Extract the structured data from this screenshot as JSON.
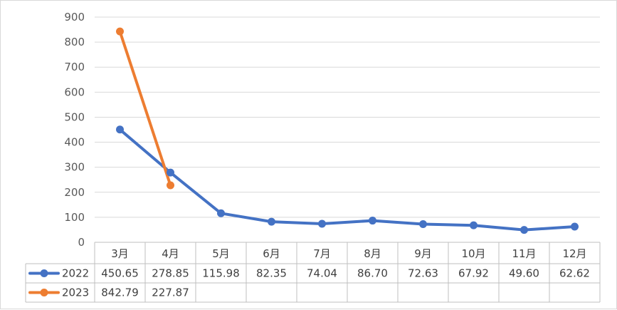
{
  "chart_data": {
    "type": "line",
    "categories": [
      "3月",
      "4月",
      "5月",
      "6月",
      "7月",
      "8月",
      "9月",
      "10月",
      "11月",
      "12月"
    ],
    "ylim": [
      0,
      900
    ],
    "yticks": [
      0,
      100,
      200,
      300,
      400,
      500,
      600,
      700,
      800,
      900
    ],
    "grid": true,
    "legend": "data table",
    "series": [
      {
        "name": "2022",
        "color": "#4472C4",
        "values": [
          450.65,
          278.85,
          115.98,
          82.35,
          74.04,
          86.7,
          72.63,
          67.92,
          49.6,
          62.62
        ],
        "labels": [
          "450.65",
          "278.85",
          "115.98",
          "82.35",
          "74.04",
          "86.70",
          "72.63",
          "67.92",
          "49.60",
          "62.62"
        ]
      },
      {
        "name": "2023",
        "color": "#ED7D31",
        "values": [
          842.79,
          227.87,
          null,
          null,
          null,
          null,
          null,
          null,
          null,
          null
        ],
        "labels": [
          "842.79",
          "227.87",
          "",
          "",
          "",
          "",
          "",
          "",
          "",
          ""
        ]
      }
    ]
  }
}
